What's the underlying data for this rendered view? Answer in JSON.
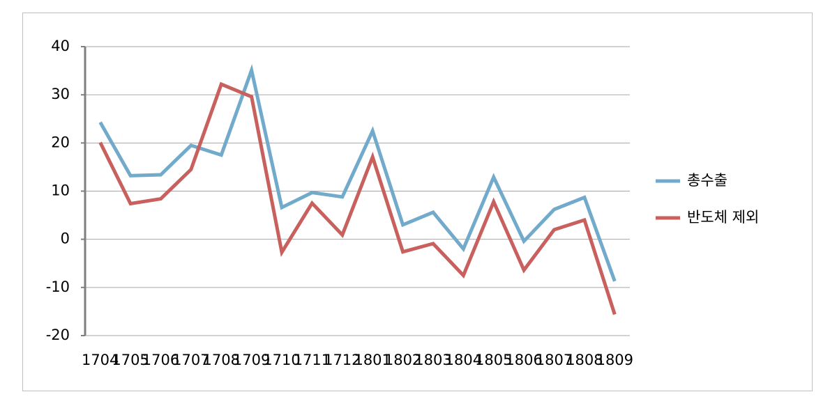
{
  "chart_data": {
    "type": "line",
    "categories": [
      "1704",
      "1705",
      "1706",
      "1707",
      "1708",
      "1709",
      "1710",
      "1711",
      "1712",
      "1801",
      "1802",
      "1803",
      "1804",
      "1805",
      "1806",
      "1807",
      "1808",
      "1809"
    ],
    "series": [
      {
        "name": "총수출",
        "color": "#72aacb",
        "values": [
          24.3,
          13.2,
          13.4,
          19.5,
          17.5,
          35.1,
          6.6,
          9.7,
          8.8,
          22.5,
          3.0,
          5.6,
          -2.0,
          12.9,
          -0.4,
          6.2,
          8.7,
          -8.7
        ]
      },
      {
        "name": "반도체 제외",
        "color": "#c8605e",
        "values": [
          20.1,
          7.4,
          8.4,
          14.5,
          32.2,
          29.6,
          -2.7,
          7.5,
          0.9,
          17.1,
          -2.6,
          -0.9,
          -7.5,
          7.8,
          -6.4,
          2.0,
          4.0,
          -15.6
        ]
      }
    ],
    "ylim": [
      -20,
      40
    ],
    "yticks": [
      -20,
      -10,
      0,
      10,
      20,
      30,
      40
    ],
    "grid": true,
    "legend": "right"
  }
}
